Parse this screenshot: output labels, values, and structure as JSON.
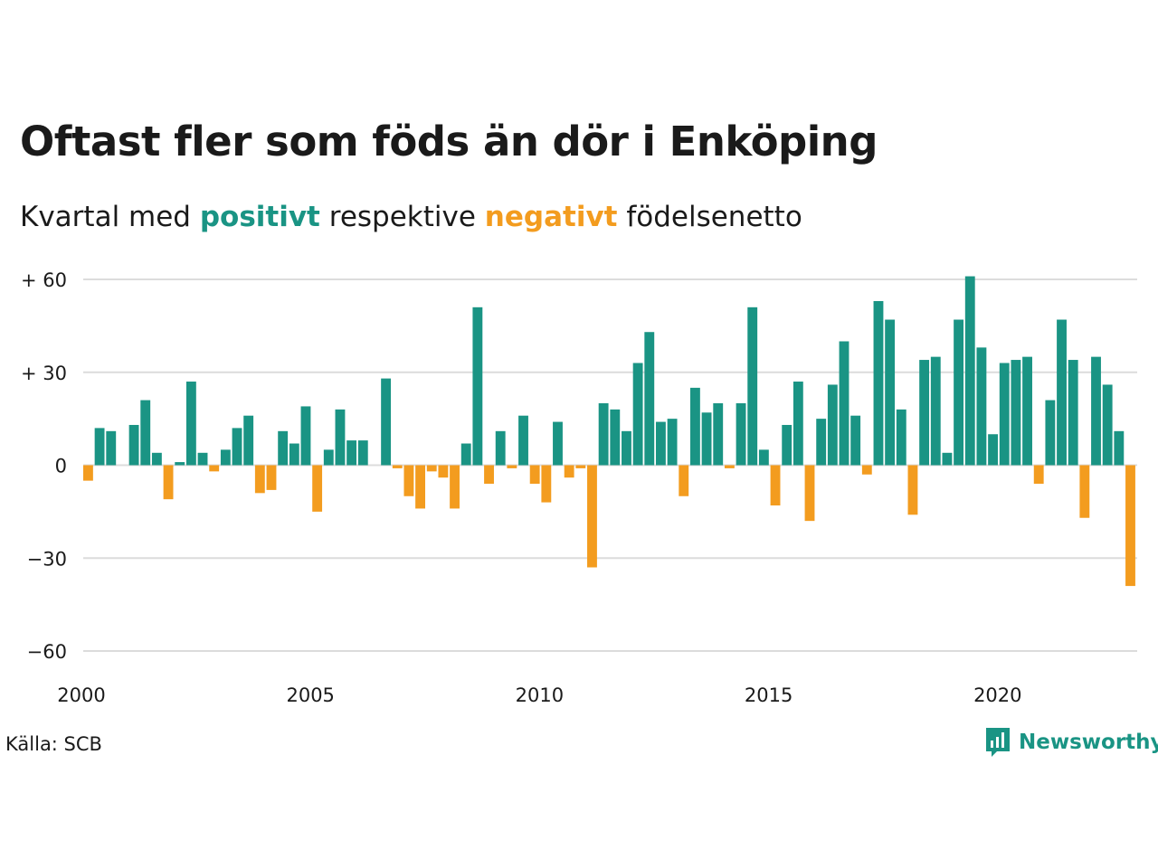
{
  "title": "Oftast fler som föds än dör i Enköping",
  "subtitle": {
    "prefix": "Kvartal med",
    "positive": "positivt",
    "middle": "respektive",
    "negative": "negativt",
    "suffix": "födelsenetto"
  },
  "source": "Källa: SCB",
  "brand": "Newsworthy",
  "colors": {
    "positive": "#1a9484",
    "negative": "#f39c1f",
    "grid": "#dcdcdc",
    "text": "#1a1a1a"
  },
  "chart_data": {
    "type": "bar",
    "x_start": "2000 Q1",
    "x_ticks": [
      "2000",
      "2005",
      "2010",
      "2015",
      "2020"
    ],
    "y_ticks": [
      {
        "value": 60,
        "label": "+ 60"
      },
      {
        "value": 30,
        "label": "+ 30"
      },
      {
        "value": 0,
        "label": "0"
      },
      {
        "value": -30,
        "label": "−30"
      },
      {
        "value": -60,
        "label": "−60"
      }
    ],
    "ylim": [
      -60,
      60
    ],
    "grid": true,
    "values": [
      -5,
      12,
      11,
      0,
      13,
      21,
      4,
      -11,
      1,
      27,
      4,
      -2,
      5,
      12,
      16,
      -9,
      -8,
      11,
      7,
      19,
      -15,
      5,
      18,
      8,
      8,
      0,
      28,
      -1,
      -10,
      -14,
      -2,
      -4,
      -14,
      7,
      51,
      -6,
      11,
      -1,
      16,
      -6,
      -12,
      14,
      -4,
      -1,
      -33,
      20,
      18,
      11,
      33,
      43,
      14,
      15,
      -10,
      25,
      17,
      20,
      -1,
      20,
      51,
      5,
      -13,
      13,
      27,
      -18,
      15,
      26,
      40,
      16,
      -3,
      53,
      47,
      18,
      -16,
      34,
      35,
      4,
      47,
      61,
      38,
      10,
      33,
      34,
      35,
      -6,
      21,
      47,
      34,
      -17,
      35,
      26,
      11,
      -39
    ]
  }
}
